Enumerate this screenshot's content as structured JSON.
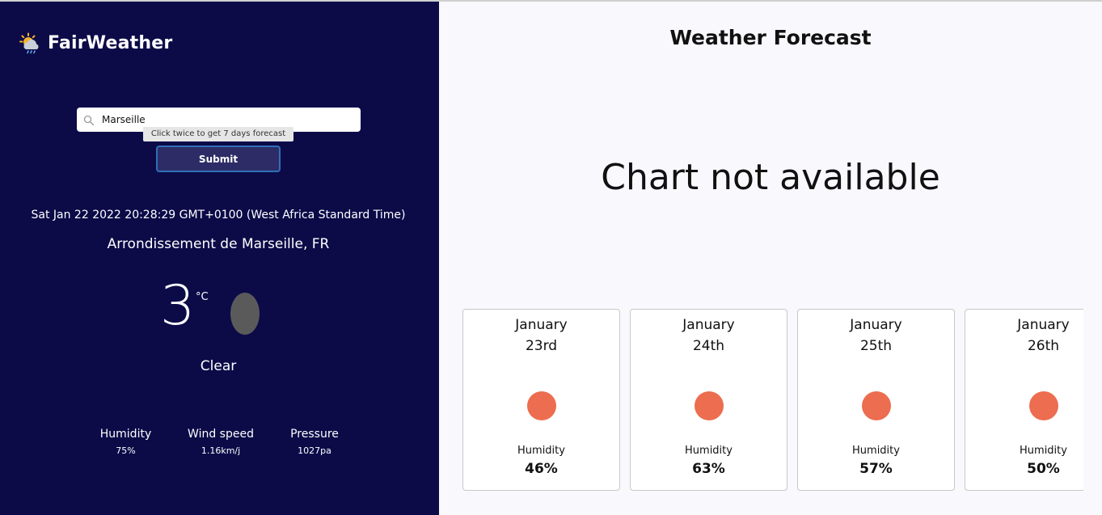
{
  "brand": {
    "title": "FairWeather",
    "icon": "sun-cloud-rain-icon"
  },
  "search": {
    "value": "Marseille",
    "placeholder": "",
    "tooltip": "Click twice to get 7 days forecast",
    "submit_label": "Submit"
  },
  "current": {
    "datetime": "Sat Jan 22 2022 20:28:29 GMT+0100 (West Africa Standard Time)",
    "location": "Arrondissement de Marseille, FR",
    "temperature": "3",
    "unit": "°C",
    "condition": "Clear",
    "stats": [
      {
        "label": "Humidity",
        "value": "75%"
      },
      {
        "label": "Wind speed",
        "value": "1.16km/j"
      },
      {
        "label": "Pressure",
        "value": "1027pa"
      }
    ]
  },
  "forecast": {
    "title": "Weather Forecast",
    "chart_message": "Chart not available",
    "days": [
      {
        "month": "January",
        "day": "23rd",
        "humidity_label": "Humidity",
        "humidity": "46%"
      },
      {
        "month": "January",
        "day": "24th",
        "humidity_label": "Humidity",
        "humidity": "63%"
      },
      {
        "month": "January",
        "day": "25th",
        "humidity_label": "Humidity",
        "humidity": "57%"
      },
      {
        "month": "January",
        "day": "26th",
        "humidity_label": "Humidity",
        "humidity": "50%"
      }
    ]
  },
  "colors": {
    "sidebar_bg": "#0c0b48",
    "sun": "#ec6d4f",
    "submit_border": "#2f6fb8"
  }
}
